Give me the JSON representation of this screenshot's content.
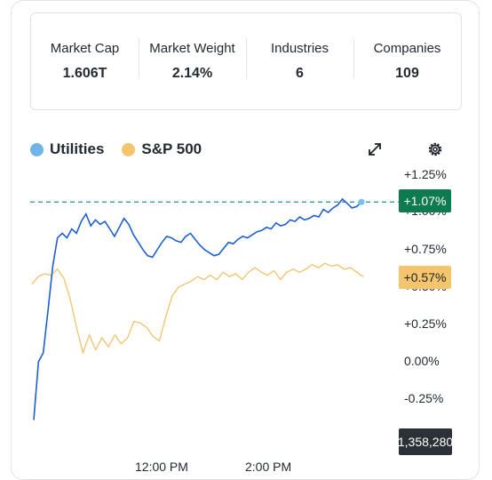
{
  "stats": [
    {
      "label": "Market Cap",
      "value": "1.606T"
    },
    {
      "label": "Market Weight",
      "value": "2.14%"
    },
    {
      "label": "Industries",
      "value": "6"
    },
    {
      "label": "Companies",
      "value": "109"
    }
  ],
  "legend": {
    "utilities": {
      "label": "Utilities",
      "color": "#6fb5e6"
    },
    "sp500": {
      "label": "S&P 500",
      "color": "#f5c56e"
    }
  },
  "toolbar": {
    "expand_icon": "expand-arrows-icon",
    "settings_icon": "gear-icon"
  },
  "badges": {
    "utilities_value": "+1.07%",
    "utilities_color": "#0e7a4f",
    "sp500_value": "+0.57%",
    "sp500_color": "#f5c56e",
    "volume_value": "1,358,280"
  },
  "chart_data": {
    "type": "line",
    "y_ticks": [
      "+1.25%",
      "+1.00%",
      "+0.75%",
      "+0.50%",
      "+0.25%",
      "0.00%",
      "-0.25%"
    ],
    "x_ticks": [
      "12:00 PM",
      "2:00 PM"
    ],
    "ylim": [
      -0.25,
      1.25
    ],
    "reference_line": 1.07,
    "series": [
      {
        "name": "Utilities",
        "color": "#1f5fd0",
        "values": [
          -0.39,
          0.0,
          0.06,
          0.34,
          0.64,
          0.83,
          0.86,
          0.83,
          0.89,
          0.86,
          0.94,
          0.99,
          0.91,
          0.95,
          0.92,
          0.94,
          0.89,
          0.84,
          0.9,
          0.96,
          0.92,
          0.85,
          0.8,
          0.75,
          0.71,
          0.7,
          0.75,
          0.8,
          0.84,
          0.83,
          0.81,
          0.8,
          0.84,
          0.86,
          0.82,
          0.78,
          0.75,
          0.73,
          0.71,
          0.72,
          0.76,
          0.8,
          0.79,
          0.82,
          0.84,
          0.83,
          0.85,
          0.87,
          0.88,
          0.9,
          0.89,
          0.93,
          0.91,
          0.92,
          0.95,
          0.94,
          0.97,
          0.95,
          0.96,
          0.98,
          0.97,
          1.02,
          1.0,
          1.03,
          1.05,
          1.09,
          1.06,
          1.03,
          1.04,
          1.07
        ]
      },
      {
        "name": "S&P 500",
        "color": "#f2c26a",
        "values": [
          0.52,
          0.57,
          0.59,
          0.58,
          0.62,
          0.56,
          0.42,
          0.23,
          0.06,
          0.18,
          0.08,
          0.16,
          0.1,
          0.18,
          0.12,
          0.16,
          0.27,
          0.26,
          0.23,
          0.17,
          0.14,
          0.3,
          0.44,
          0.5,
          0.52,
          0.54,
          0.57,
          0.55,
          0.58,
          0.55,
          0.6,
          0.57,
          0.59,
          0.55,
          0.6,
          0.63,
          0.6,
          0.58,
          0.61,
          0.55,
          0.6,
          0.62,
          0.6,
          0.62,
          0.65,
          0.63,
          0.66,
          0.64,
          0.65,
          0.62,
          0.63,
          0.6,
          0.57
        ]
      }
    ]
  }
}
